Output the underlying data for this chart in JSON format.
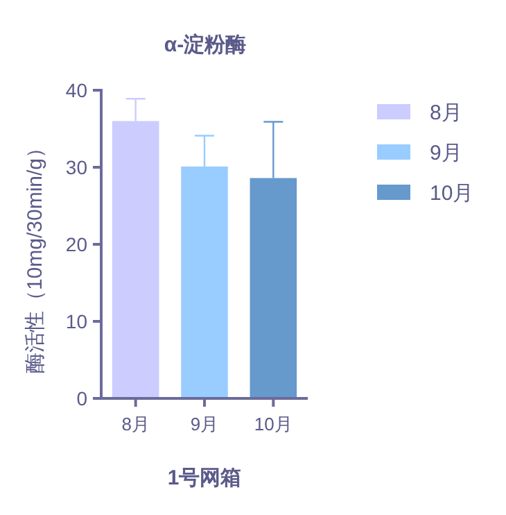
{
  "chart_data": {
    "type": "bar",
    "title": "α-淀粉酶",
    "xlabel": "1号网箱",
    "ylabel": "酶活性（10mg/30min/g）",
    "categories": [
      "8月",
      "9月",
      "10月"
    ],
    "series": [
      {
        "name": "8月",
        "color": "#ccccff",
        "values": [
          36.0,
          null,
          null
        ],
        "errors": [
          [
            36.0,
            38.9
          ],
          null,
          null
        ]
      },
      {
        "name": "9月",
        "color": "#99ccff",
        "values": [
          null,
          30.1,
          null
        ],
        "errors": [
          null,
          [
            30.1,
            34.1
          ],
          null
        ]
      },
      {
        "name": "10月",
        "color": "#6699cc",
        "values": [
          null,
          null,
          28.6
        ],
        "errors": [
          null,
          null,
          [
            28.6,
            35.9
          ]
        ]
      }
    ],
    "ylim": [
      0,
      40
    ],
    "yticks": [
      0,
      10,
      20,
      30,
      40
    ],
    "grid": false,
    "legend": "right"
  }
}
